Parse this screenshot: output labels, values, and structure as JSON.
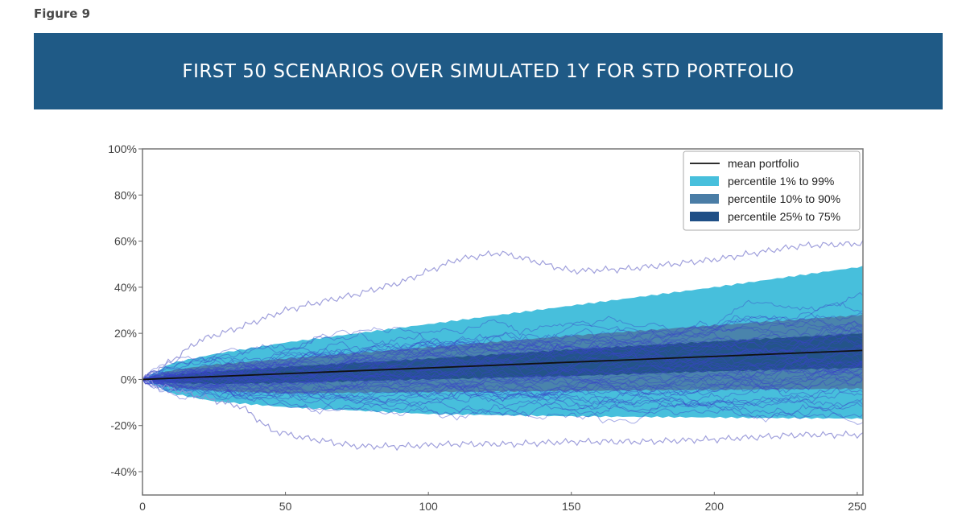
{
  "figure_label": "Figure 9",
  "banner_title": "FIRST 50 SCENARIOS OVER SIMULATED 1Y FOR STD PORTFOLIO",
  "colors": {
    "banner": "#1f5a86",
    "band_1_99": "#47bfdc",
    "band_10_90": "#4a7da6",
    "band_25_75": "#1f4f86",
    "mean": "#111111",
    "scenario": "#3a45c8"
  },
  "chart_data": {
    "type": "line",
    "title": "FIRST 50 SCENARIOS OVER SIMULATED 1Y FOR STD PORTFOLIO",
    "xlabel": "",
    "ylabel": "",
    "xlim": [
      0,
      252
    ],
    "ylim": [
      -50,
      100
    ],
    "x_ticks": [
      0,
      50,
      100,
      150,
      200,
      250
    ],
    "x_tick_labels": [
      "0",
      "50",
      "100",
      "150",
      "200",
      "250"
    ],
    "y_ticks": [
      100,
      80,
      60,
      40,
      20,
      0,
      -20,
      -40
    ],
    "y_tick_labels": [
      "100%",
      "80%",
      "60%",
      "40%",
      "20%",
      "0%",
      "-20%",
      "-40%"
    ],
    "grid": false,
    "legend_position": "top-right",
    "legend": [
      {
        "label": "mean portfolio",
        "kind": "line",
        "color_key": "mean"
      },
      {
        "label": "percentile 1% to 99%",
        "kind": "patch",
        "color_key": "band_1_99"
      },
      {
        "label": "percentile 10% to 90%",
        "kind": "patch",
        "color_key": "band_10_90"
      },
      {
        "label": "percentile 25% to 75%",
        "kind": "patch",
        "color_key": "band_25_75"
      }
    ],
    "mean_portfolio": {
      "x": [
        0,
        50,
        100,
        150,
        200,
        252
      ],
      "y": [
        0,
        2.5,
        5,
        7.5,
        10,
        12.6
      ]
    },
    "bands": [
      {
        "name": "percentile 1% to 99%",
        "x": [
          0,
          10,
          25,
          50,
          100,
          150,
          200,
          252
        ],
        "upper": [
          0,
          7,
          11,
          16,
          24,
          32,
          40,
          49
        ],
        "lower": [
          0,
          -6,
          -9.5,
          -12,
          -15,
          -16,
          -16.5,
          -17
        ]
      },
      {
        "name": "percentile 10% to 90%",
        "x": [
          0,
          10,
          25,
          50,
          100,
          150,
          200,
          252
        ],
        "upper": [
          0,
          4,
          6.5,
          9,
          14,
          19,
          23.5,
          28
        ],
        "lower": [
          0,
          -3.5,
          -5,
          -6,
          -5.5,
          -5,
          -4.5,
          -4
        ]
      },
      {
        "name": "percentile 25% to 75%",
        "x": [
          0,
          10,
          25,
          50,
          100,
          150,
          200,
          252
        ],
        "upper": [
          0,
          2,
          3.5,
          5.5,
          9,
          13,
          16.5,
          20
        ],
        "lower": [
          0,
          -1.5,
          -2,
          -1.5,
          0,
          1.5,
          3.5,
          5
        ]
      }
    ],
    "scenarios_count": 50,
    "highlighted_scenarios": [
      {
        "name": "top outlier",
        "x": [
          0,
          10,
          20,
          35,
          50,
          60,
          75,
          90,
          110,
          125,
          135,
          150,
          170,
          200,
          230,
          252
        ],
        "y": [
          0,
          8,
          17,
          23,
          30,
          33,
          37,
          42,
          52,
          55,
          52,
          47,
          48,
          52,
          58,
          59
        ]
      },
      {
        "name": "bottom outlier",
        "x": [
          0,
          10,
          25,
          35,
          45,
          55,
          65,
          75,
          90,
          110,
          130,
          150,
          175,
          200,
          230,
          252
        ],
        "y": [
          0,
          -4,
          -9,
          -12,
          -22,
          -25,
          -27,
          -29,
          -29,
          -28,
          -28,
          -27,
          -27,
          -26,
          -24,
          -24
        ]
      }
    ]
  }
}
